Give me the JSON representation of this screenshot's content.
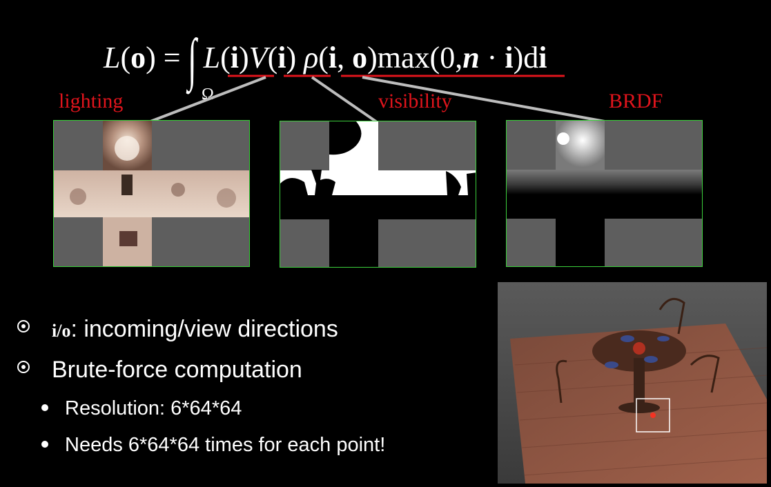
{
  "equation": {
    "text": "L(o) = ∫ L(i) V(i) ρ(i, o) max(0, n · i) di",
    "lhs": "L(o)",
    "equals": "=",
    "integral": "∫",
    "lighting_term": "L(i)",
    "visibility_term": "V(i)",
    "brdf_term": "ρ(i, o)",
    "cosine_term": "max(0,n · i)di",
    "domain": "Ω"
  },
  "labels": {
    "lighting": "lighting",
    "visibility": "visibility",
    "brdf": "BRDF"
  },
  "bullets": [
    {
      "prefix": "i/o",
      "text": ": incoming/view directions"
    },
    {
      "text": "Brute-force computation"
    }
  ],
  "sub_bullets": [
    {
      "text": "Resolution: 6*64*64"
    },
    {
      "text": "Needs 6*64*64 times for each point!"
    }
  ],
  "colors": {
    "accent_red": "#e0141c",
    "panel_border": "#3cd13c",
    "cube_background": "#5e5e5e",
    "connector": "#bdbdbd"
  },
  "icons": [
    "ring-bullet-icon",
    "dot-bullet-icon"
  ]
}
